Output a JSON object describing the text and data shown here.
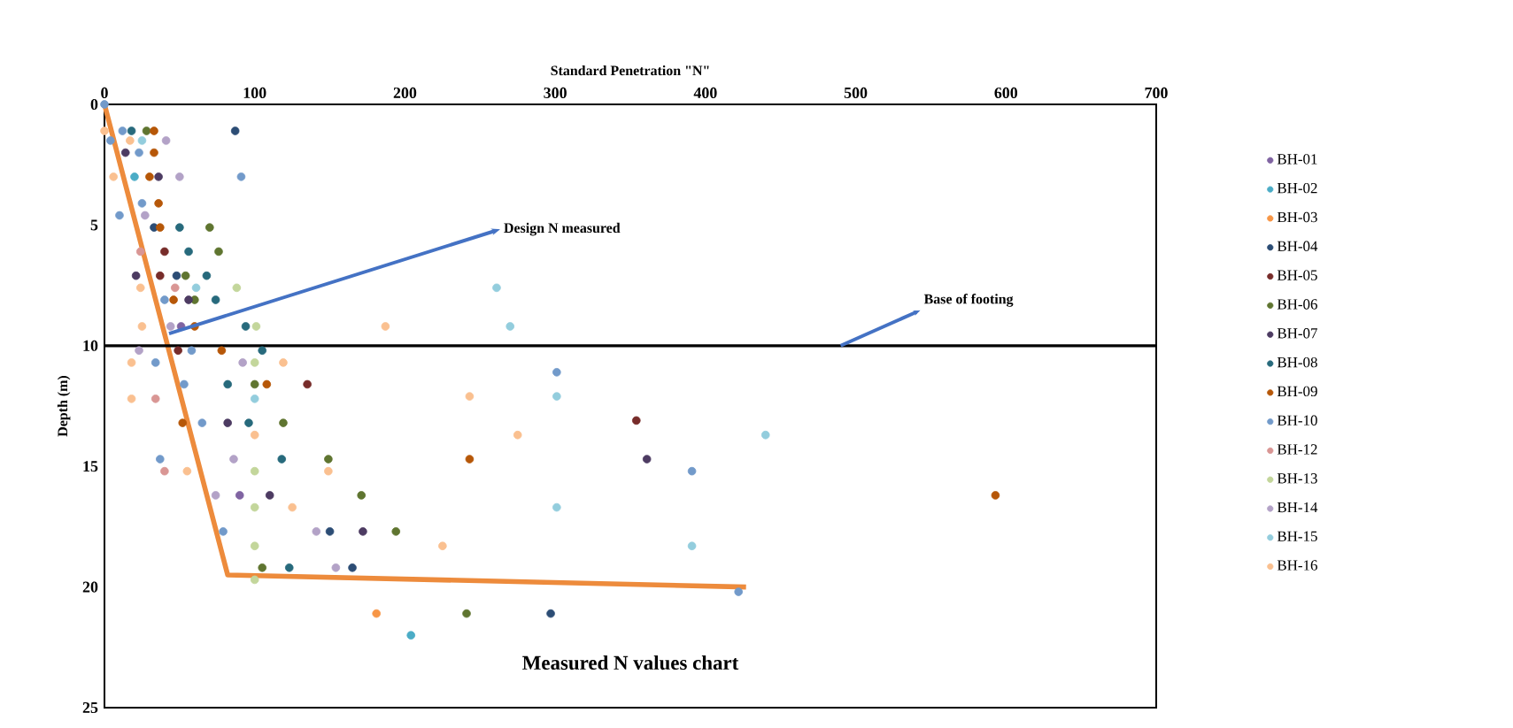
{
  "chart_data": {
    "type": "scatter",
    "title": "Measured N values chart",
    "xlabel": "Standard Penetration \"N\"",
    "ylabel": "Depth (m)",
    "xlim": [
      0,
      700
    ],
    "xticks": [
      0,
      100,
      200,
      300,
      400,
      500,
      600,
      700
    ],
    "ylim": [
      25,
      0
    ],
    "yticks": [
      0,
      5,
      10,
      15,
      20,
      25
    ],
    "marker": "circle",
    "legend": "right",
    "ref_lines": [
      {
        "axis": "y",
        "value": 10,
        "label": "Base of footing"
      }
    ],
    "annotations": [
      {
        "text": "Design N measured",
        "x": 43,
        "y": 9.5
      }
    ],
    "series": [
      {
        "name": "BH-01",
        "color": "#8064a2",
        "x": [
          51,
          90
        ],
        "values": [
          9.2,
          16.2
        ]
      },
      {
        "name": "BH-02",
        "color": "#4bacc6",
        "x": [
          20,
          204
        ],
        "values": [
          3.0,
          22.0
        ]
      },
      {
        "name": "BH-03",
        "color": "#f79646",
        "x": [
          181
        ],
        "values": [
          21.1
        ]
      },
      {
        "name": "BH-04",
        "color": "#2c4d75",
        "x": [
          87,
          33,
          48,
          150,
          165,
          297
        ],
        "values": [
          1.1,
          5.1,
          7.1,
          17.7,
          19.2,
          21.1
        ]
      },
      {
        "name": "BH-05",
        "color": "#772c2a",
        "x": [
          40,
          37,
          49,
          135,
          354
        ],
        "values": [
          6.1,
          7.1,
          10.2,
          11.6,
          13.1
        ]
      },
      {
        "name": "BH-06",
        "color": "#5f7530",
        "x": [
          28,
          70,
          76,
          54,
          60,
          100,
          119,
          149,
          171,
          194,
          105,
          241
        ],
        "values": [
          1.1,
          5.1,
          6.1,
          7.1,
          8.1,
          11.6,
          13.2,
          14.7,
          16.2,
          17.7,
          19.2,
          21.1
        ]
      },
      {
        "name": "BH-07",
        "color": "#4d3b62",
        "x": [
          14,
          36,
          21,
          56,
          82,
          361,
          110,
          172
        ],
        "values": [
          2.0,
          3.0,
          7.1,
          8.1,
          13.2,
          14.7,
          16.2,
          17.7
        ]
      },
      {
        "name": "BH-08",
        "color": "#276a7c",
        "x": [
          18,
          50,
          56,
          68,
          74,
          94,
          105,
          82,
          96,
          118,
          123
        ],
        "values": [
          1.1,
          5.1,
          6.1,
          7.1,
          8.1,
          9.2,
          10.2,
          11.6,
          13.2,
          14.7,
          19.2
        ]
      },
      {
        "name": "BH-09",
        "color": "#b65708",
        "x": [
          33,
          33,
          30,
          36,
          37,
          46,
          60,
          78,
          108,
          52,
          243,
          593
        ],
        "values": [
          1.1,
          2.0,
          3.0,
          4.1,
          5.1,
          8.1,
          9.2,
          10.2,
          11.6,
          13.2,
          14.7,
          16.2
        ]
      },
      {
        "name": "BH-10",
        "color": "#729aca",
        "x": [
          0,
          12,
          4,
          23,
          91,
          25,
          10,
          40,
          58,
          34,
          53,
          301,
          65,
          37,
          391,
          79,
          422
        ],
        "values": [
          0,
          1.1,
          1.5,
          2.0,
          3.0,
          4.1,
          4.6,
          8.1,
          10.2,
          10.7,
          11.6,
          11.1,
          13.2,
          14.7,
          15.2,
          17.7,
          20.2
        ]
      },
      {
        "name": "BH-12",
        "color": "#d99694",
        "x": [
          24,
          47,
          34,
          40
        ],
        "values": [
          6.1,
          7.6,
          12.2,
          15.2
        ]
      },
      {
        "name": "BH-13",
        "color": "#c3d69b",
        "x": [
          88,
          101,
          100,
          100,
          100,
          100,
          100
        ],
        "values": [
          7.6,
          9.2,
          10.7,
          15.2,
          16.7,
          18.3,
          19.7
        ]
      },
      {
        "name": "BH-14",
        "color": "#b3a2c7",
        "x": [
          41,
          50,
          27,
          44,
          23,
          92,
          86,
          74,
          141,
          154
        ],
        "values": [
          1.5,
          3.0,
          4.6,
          9.2,
          10.2,
          10.7,
          14.7,
          16.2,
          17.7,
          19.2
        ]
      },
      {
        "name": "BH-15",
        "color": "#93cddd",
        "x": [
          25,
          61,
          261,
          270,
          100,
          301,
          440,
          301,
          391
        ],
        "values": [
          1.5,
          7.6,
          7.6,
          9.2,
          12.2,
          12.1,
          13.7,
          16.7,
          18.3
        ]
      },
      {
        "name": "BH-16",
        "color": "#fac090",
        "x": [
          0,
          17,
          6,
          24,
          25,
          187,
          18,
          119,
          18,
          243,
          100,
          275,
          55,
          149,
          125,
          225
        ],
        "values": [
          1.1,
          1.5,
          3.0,
          7.6,
          9.2,
          9.2,
          10.7,
          10.7,
          12.2,
          12.1,
          13.7,
          13.7,
          15.2,
          15.2,
          16.7,
          18.3
        ]
      },
      {
        "type": "line",
        "marker": "none",
        "color": "#ed8b3c",
        "x": [
          0,
          82,
          427
        ],
        "values": [
          0,
          19.5,
          20.0
        ]
      }
    ]
  }
}
